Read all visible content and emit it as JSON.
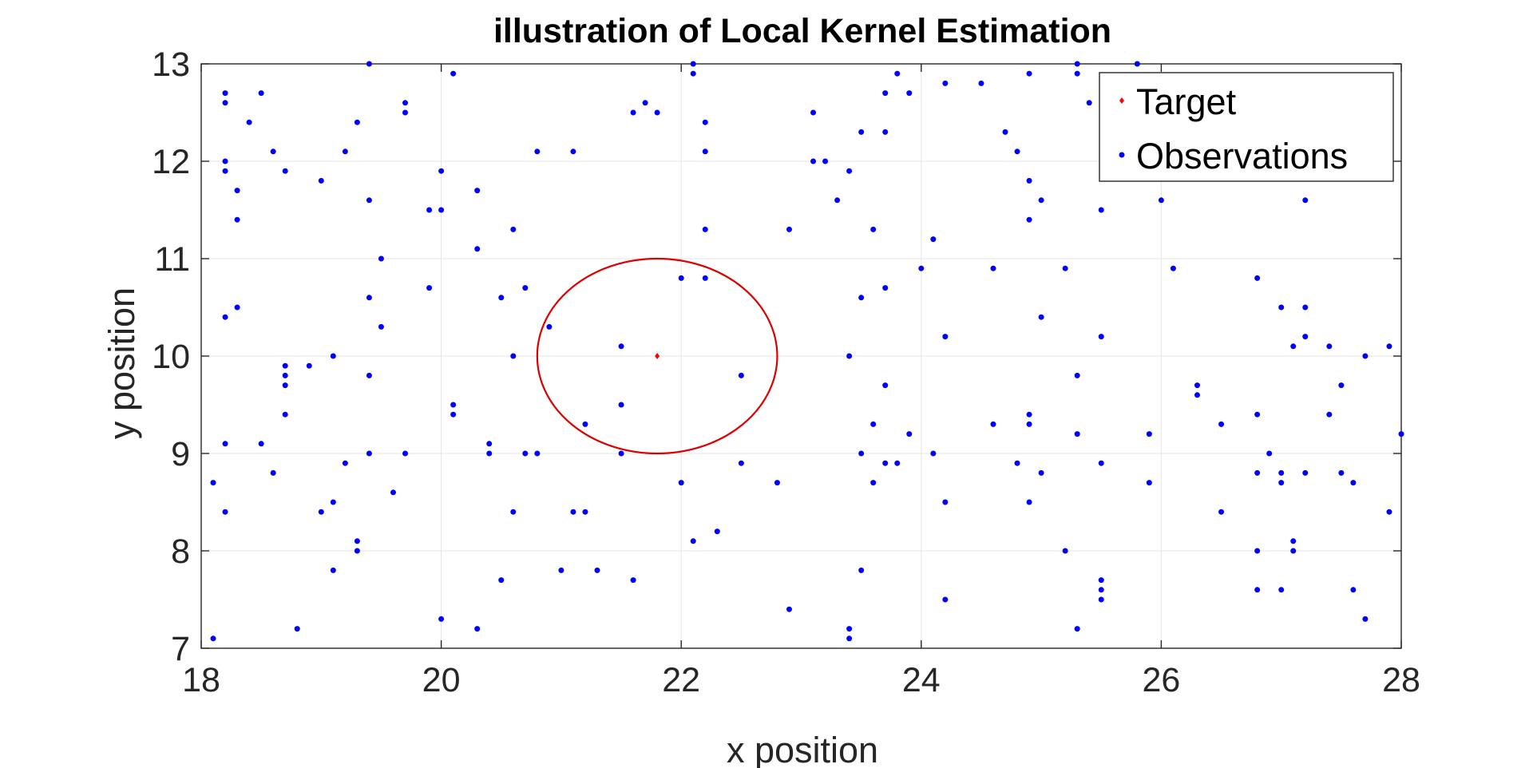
{
  "chart_data": {
    "type": "scatter",
    "title": "illustration of Local Kernel Estimation",
    "xlabel": "x position",
    "ylabel": "y position",
    "xlim": [
      18,
      28
    ],
    "ylim": [
      7,
      13
    ],
    "xticks": [
      "18",
      "20",
      "22",
      "24",
      "26",
      "28"
    ],
    "yticks": [
      "7",
      "8",
      "9",
      "10",
      "11",
      "12",
      "13"
    ],
    "grid": true,
    "legend_position": "top-right",
    "legend": [
      "Target",
      "Observations"
    ],
    "colors": {
      "target": "#ff0000",
      "observations": "#0000ff",
      "circle": "#dd0000"
    },
    "target": {
      "x": 21.8,
      "y": 10.0
    },
    "kernel_circle": {
      "center_x": 21.8,
      "center_y": 10.0,
      "radius_x": 1.0,
      "radius_y": 1.0
    },
    "series": [
      {
        "name": "Observations",
        "points": [
          [
            18.1,
            8.7
          ],
          [
            18.1,
            7.1
          ],
          [
            18.2,
            12.7
          ],
          [
            18.2,
            12.6
          ],
          [
            18.2,
            12.0
          ],
          [
            18.2,
            11.9
          ],
          [
            18.2,
            10.4
          ],
          [
            18.2,
            9.1
          ],
          [
            18.2,
            8.4
          ],
          [
            18.3,
            11.7
          ],
          [
            18.3,
            11.4
          ],
          [
            18.3,
            10.5
          ],
          [
            18.4,
            12.4
          ],
          [
            18.5,
            12.7
          ],
          [
            18.5,
            9.1
          ],
          [
            18.6,
            12.1
          ],
          [
            18.6,
            8.8
          ],
          [
            18.7,
            11.9
          ],
          [
            18.7,
            9.9
          ],
          [
            18.7,
            9.8
          ],
          [
            18.7,
            9.7
          ],
          [
            18.7,
            9.4
          ],
          [
            18.8,
            7.2
          ],
          [
            18.9,
            9.9
          ],
          [
            19.0,
            11.8
          ],
          [
            19.0,
            8.4
          ],
          [
            19.1,
            10.0
          ],
          [
            19.1,
            8.5
          ],
          [
            19.1,
            7.8
          ],
          [
            19.2,
            12.1
          ],
          [
            19.2,
            8.9
          ],
          [
            19.3,
            12.4
          ],
          [
            19.3,
            8.1
          ],
          [
            19.3,
            8.0
          ],
          [
            19.4,
            13.0
          ],
          [
            19.4,
            11.6
          ],
          [
            19.4,
            10.6
          ],
          [
            19.4,
            9.8
          ],
          [
            19.4,
            9.0
          ],
          [
            19.5,
            11.0
          ],
          [
            19.5,
            10.3
          ],
          [
            19.6,
            8.6
          ],
          [
            19.7,
            12.6
          ],
          [
            19.7,
            12.5
          ],
          [
            19.7,
            9.0
          ],
          [
            19.9,
            11.5
          ],
          [
            19.9,
            10.7
          ],
          [
            20.0,
            11.9
          ],
          [
            20.0,
            11.5
          ],
          [
            20.0,
            7.3
          ],
          [
            20.1,
            12.9
          ],
          [
            20.1,
            9.5
          ],
          [
            20.1,
            9.4
          ],
          [
            20.3,
            11.7
          ],
          [
            20.3,
            11.1
          ],
          [
            20.3,
            7.2
          ],
          [
            20.4,
            9.1
          ],
          [
            20.4,
            9.0
          ],
          [
            20.5,
            10.6
          ],
          [
            20.5,
            7.7
          ],
          [
            20.6,
            11.3
          ],
          [
            20.6,
            10.0
          ],
          [
            20.6,
            8.4
          ],
          [
            20.7,
            10.7
          ],
          [
            20.7,
            9.0
          ],
          [
            20.8,
            12.1
          ],
          [
            20.8,
            9.0
          ],
          [
            20.9,
            10.3
          ],
          [
            21.0,
            7.8
          ],
          [
            21.1,
            12.1
          ],
          [
            21.1,
            8.4
          ],
          [
            21.2,
            9.3
          ],
          [
            21.2,
            8.4
          ],
          [
            21.3,
            7.8
          ],
          [
            21.5,
            10.1
          ],
          [
            21.5,
            9.5
          ],
          [
            21.5,
            9.0
          ],
          [
            21.6,
            12.5
          ],
          [
            21.6,
            7.7
          ],
          [
            21.7,
            12.6
          ],
          [
            21.8,
            12.5
          ],
          [
            22.0,
            10.8
          ],
          [
            22.0,
            8.7
          ],
          [
            22.1,
            13.0
          ],
          [
            22.1,
            12.9
          ],
          [
            22.1,
            8.1
          ],
          [
            22.2,
            12.4
          ],
          [
            22.2,
            12.1
          ],
          [
            22.2,
            11.3
          ],
          [
            22.2,
            10.8
          ],
          [
            22.3,
            8.2
          ],
          [
            22.5,
            9.8
          ],
          [
            22.5,
            8.9
          ],
          [
            22.8,
            8.7
          ],
          [
            22.9,
            11.3
          ],
          [
            22.9,
            7.4
          ],
          [
            23.1,
            12.5
          ],
          [
            23.1,
            12.0
          ],
          [
            23.2,
            12.0
          ],
          [
            23.3,
            11.6
          ],
          [
            23.4,
            11.9
          ],
          [
            23.4,
            10.0
          ],
          [
            23.4,
            7.2
          ],
          [
            23.4,
            7.1
          ],
          [
            23.5,
            12.3
          ],
          [
            23.5,
            10.6
          ],
          [
            23.5,
            9.0
          ],
          [
            23.5,
            7.8
          ],
          [
            23.6,
            11.3
          ],
          [
            23.6,
            9.3
          ],
          [
            23.6,
            8.7
          ],
          [
            23.7,
            12.7
          ],
          [
            23.7,
            12.3
          ],
          [
            23.7,
            10.7
          ],
          [
            23.7,
            9.7
          ],
          [
            23.7,
            8.9
          ],
          [
            23.8,
            12.9
          ],
          [
            23.8,
            8.9
          ],
          [
            23.9,
            12.7
          ],
          [
            23.9,
            9.2
          ],
          [
            24.0,
            10.9
          ],
          [
            24.1,
            11.2
          ],
          [
            24.1,
            9.0
          ],
          [
            24.2,
            12.8
          ],
          [
            24.2,
            10.2
          ],
          [
            24.2,
            8.5
          ],
          [
            24.2,
            7.5
          ],
          [
            24.5,
            12.8
          ],
          [
            24.6,
            10.9
          ],
          [
            24.6,
            9.3
          ],
          [
            24.7,
            12.3
          ],
          [
            24.8,
            12.1
          ],
          [
            24.8,
            8.9
          ],
          [
            24.9,
            12.9
          ],
          [
            24.9,
            11.8
          ],
          [
            24.9,
            11.4
          ],
          [
            24.9,
            9.4
          ],
          [
            24.9,
            9.3
          ],
          [
            24.9,
            8.5
          ],
          [
            25.0,
            11.6
          ],
          [
            25.0,
            10.4
          ],
          [
            25.0,
            8.8
          ],
          [
            25.2,
            10.9
          ],
          [
            25.2,
            8.0
          ],
          [
            25.3,
            13.0
          ],
          [
            25.3,
            12.9
          ],
          [
            25.3,
            9.8
          ],
          [
            25.3,
            9.2
          ],
          [
            25.3,
            7.2
          ],
          [
            25.4,
            12.6
          ],
          [
            25.5,
            11.5
          ],
          [
            25.5,
            10.2
          ],
          [
            25.5,
            8.9
          ],
          [
            25.5,
            7.7
          ],
          [
            25.5,
            7.6
          ],
          [
            25.5,
            7.5
          ],
          [
            25.8,
            13.0
          ],
          [
            25.9,
            9.2
          ],
          [
            25.9,
            8.7
          ],
          [
            26.0,
            11.6
          ],
          [
            26.1,
            10.9
          ],
          [
            26.3,
            9.7
          ],
          [
            26.3,
            9.6
          ],
          [
            26.5,
            9.3
          ],
          [
            26.5,
            8.4
          ],
          [
            26.8,
            10.8
          ],
          [
            26.8,
            9.4
          ],
          [
            26.8,
            8.8
          ],
          [
            26.8,
            8.0
          ],
          [
            26.8,
            7.6
          ],
          [
            26.9,
            9.0
          ],
          [
            27.0,
            10.5
          ],
          [
            27.0,
            8.8
          ],
          [
            27.0,
            8.7
          ],
          [
            27.0,
            7.6
          ],
          [
            27.1,
            10.1
          ],
          [
            27.1,
            8.1
          ],
          [
            27.1,
            8.0
          ],
          [
            27.2,
            11.6
          ],
          [
            27.2,
            10.5
          ],
          [
            27.2,
            10.2
          ],
          [
            27.2,
            8.8
          ],
          [
            27.4,
            10.1
          ],
          [
            27.4,
            9.4
          ],
          [
            27.5,
            9.7
          ],
          [
            27.5,
            8.8
          ],
          [
            27.6,
            8.7
          ],
          [
            27.6,
            7.6
          ],
          [
            27.7,
            10.0
          ],
          [
            27.7,
            7.3
          ],
          [
            27.9,
            10.1
          ],
          [
            27.9,
            8.4
          ],
          [
            28.0,
            9.2
          ]
        ]
      }
    ]
  }
}
